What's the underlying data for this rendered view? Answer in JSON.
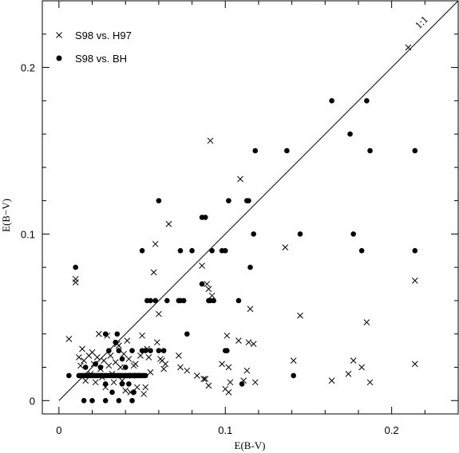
{
  "chart_data": {
    "type": "scatter",
    "xlabel": "E(B-V)",
    "ylabel": "E(B−V)",
    "xlim": [
      -0.01,
      0.24
    ],
    "ylim": [
      -0.008,
      0.24
    ],
    "xticks_major": [
      0,
      0.1,
      0.2
    ],
    "xtick_labels": [
      "0",
      "0.1",
      "0.2"
    ],
    "yticks_major": [
      0,
      0.1,
      0.2
    ],
    "ytick_labels": [
      "0",
      "0.1",
      "0.2"
    ],
    "minor_step": 0.02,
    "annotation": "1:1",
    "one_to_one_line": [
      [
        0,
        0
      ],
      [
        0.24,
        0.24
      ]
    ],
    "legend_position": "top-left",
    "series": [
      {
        "name": "S98 vs. H97",
        "marker": "x",
        "points": [
          [
            0.006,
            0.037
          ],
          [
            0.01,
            0.073
          ],
          [
            0.01,
            0.071
          ],
          [
            0.012,
            0.026
          ],
          [
            0.013,
            0.021
          ],
          [
            0.014,
            0.031
          ],
          [
            0.015,
            0.024
          ],
          [
            0.016,
            0.012
          ],
          [
            0.018,
            0.027
          ],
          [
            0.019,
            0.016
          ],
          [
            0.02,
            0.029
          ],
          [
            0.021,
            0.022
          ],
          [
            0.022,
            0.011
          ],
          [
            0.023,
            0.026
          ],
          [
            0.024,
            0.04
          ],
          [
            0.025,
            0.019
          ],
          [
            0.026,
            0.014
          ],
          [
            0.027,
            0.024
          ],
          [
            0.028,
            0.008
          ],
          [
            0.029,
            0.039
          ],
          [
            0.03,
            0.021
          ],
          [
            0.031,
            0.027
          ],
          [
            0.032,
            0.016
          ],
          [
            0.033,
            0.011
          ],
          [
            0.034,
            0.023
          ],
          [
            0.035,
            0.034
          ],
          [
            0.036,
            0.033
          ],
          [
            0.037,
            0.02
          ],
          [
            0.038,
            0.012
          ],
          [
            0.039,
            0.028
          ],
          [
            0.04,
            0.006
          ],
          [
            0.041,
            0.036
          ],
          [
            0.042,
            0.025
          ],
          [
            0.043,
            0.005
          ],
          [
            0.044,
            0.015
          ],
          [
            0.045,
            0.021
          ],
          [
            0.046,
            0.022
          ],
          [
            0.047,
            0.008
          ],
          [
            0.049,
            0.027
          ],
          [
            0.05,
            0.039
          ],
          [
            0.051,
            0.004
          ],
          [
            0.052,
            0.008
          ],
          [
            0.053,
            0.031
          ],
          [
            0.054,
            0.026
          ],
          [
            0.055,
            0.017
          ],
          [
            0.057,
            0.077
          ],
          [
            0.058,
            0.094
          ],
          [
            0.059,
            0.035
          ],
          [
            0.06,
            0.052
          ],
          [
            0.061,
            0.025
          ],
          [
            0.062,
            0.024
          ],
          [
            0.063,
            0.019
          ],
          [
            0.064,
            0.022
          ],
          [
            0.066,
            0.106
          ],
          [
            0.072,
            0.027
          ],
          [
            0.073,
            0.02
          ],
          [
            0.077,
            0.018
          ],
          [
            0.083,
            0.015
          ],
          [
            0.086,
            0.081
          ],
          [
            0.087,
            0.013
          ],
          [
            0.088,
            0.013
          ],
          [
            0.089,
            0.07
          ],
          [
            0.09,
            0.067
          ],
          [
            0.09,
            0.009
          ],
          [
            0.091,
            0.156
          ],
          [
            0.092,
            0.063
          ],
          [
            0.098,
            0.022
          ],
          [
            0.1,
            0.007
          ],
          [
            0.101,
            0.039
          ],
          [
            0.102,
            0.005
          ],
          [
            0.102,
            0.02
          ],
          [
            0.103,
            0.011
          ],
          [
            0.108,
            0.036
          ],
          [
            0.109,
            0.133
          ],
          [
            0.111,
            0.012
          ],
          [
            0.113,
            0.018
          ],
          [
            0.114,
            0.035
          ],
          [
            0.115,
            0.055
          ],
          [
            0.117,
            0.034
          ],
          [
            0.118,
            0.011
          ],
          [
            0.136,
            0.092
          ],
          [
            0.141,
            0.024
          ],
          [
            0.145,
            0.051
          ],
          [
            0.164,
            0.012
          ],
          [
            0.174,
            0.016
          ],
          [
            0.177,
            0.024
          ],
          [
            0.182,
            0.02
          ],
          [
            0.185,
            0.047
          ],
          [
            0.187,
            0.011
          ],
          [
            0.21,
            0.212
          ],
          [
            0.214,
            0.072
          ],
          [
            0.214,
            0.022
          ]
        ]
      },
      {
        "name": "S98 vs. BH",
        "marker": "o",
        "points": [
          [
            0.006,
            0.015
          ],
          [
            0.01,
            0.08
          ],
          [
            0.012,
            0.015
          ],
          [
            0.013,
            0.015
          ],
          [
            0.014,
            0.015
          ],
          [
            0.015,
            0.015
          ],
          [
            0.016,
            0.015
          ],
          [
            0.017,
            0.015
          ],
          [
            0.018,
            0.015
          ],
          [
            0.019,
            0.015
          ],
          [
            0.02,
            0.015
          ],
          [
            0.021,
            0.015
          ],
          [
            0.022,
            0.015
          ],
          [
            0.023,
            0.015
          ],
          [
            0.024,
            0.015
          ],
          [
            0.025,
            0.015
          ],
          [
            0.026,
            0.015
          ],
          [
            0.027,
            0.015
          ],
          [
            0.028,
            0.015
          ],
          [
            0.029,
            0.015
          ],
          [
            0.03,
            0.015
          ],
          [
            0.031,
            0.015
          ],
          [
            0.032,
            0.015
          ],
          [
            0.033,
            0.015
          ],
          [
            0.034,
            0.015
          ],
          [
            0.035,
            0.015
          ],
          [
            0.036,
            0.015
          ],
          [
            0.037,
            0.015
          ],
          [
            0.038,
            0.015
          ],
          [
            0.039,
            0.015
          ],
          [
            0.04,
            0.015
          ],
          [
            0.041,
            0.015
          ],
          [
            0.042,
            0.015
          ],
          [
            0.043,
            0.015
          ],
          [
            0.044,
            0.015
          ],
          [
            0.045,
            0.015
          ],
          [
            0.046,
            0.015
          ],
          [
            0.047,
            0.015
          ],
          [
            0.048,
            0.015
          ],
          [
            0.049,
            0.015
          ],
          [
            0.05,
            0.015
          ],
          [
            0.051,
            0.015
          ],
          [
            0.052,
            0.015
          ],
          [
            0.015,
            0.0
          ],
          [
            0.02,
            0.0
          ],
          [
            0.028,
            0.0
          ],
          [
            0.036,
            0.0
          ],
          [
            0.044,
            0.0
          ],
          [
            0.016,
            0.02
          ],
          [
            0.022,
            0.022
          ],
          [
            0.028,
            0.04
          ],
          [
            0.03,
            0.03
          ],
          [
            0.034,
            0.035
          ],
          [
            0.035,
            0.04
          ],
          [
            0.036,
            0.03
          ],
          [
            0.025,
            0.02
          ],
          [
            0.028,
            0.01
          ],
          [
            0.032,
            0.005
          ],
          [
            0.038,
            0.01
          ],
          [
            0.042,
            0.01
          ],
          [
            0.045,
            0.005
          ],
          [
            0.048,
            0.015
          ],
          [
            0.05,
            0.03
          ],
          [
            0.038,
            0.025
          ],
          [
            0.04,
            0.02
          ],
          [
            0.044,
            0.03
          ],
          [
            0.052,
            0.03
          ],
          [
            0.055,
            0.03
          ],
          [
            0.05,
            0.09
          ],
          [
            0.053,
            0.06
          ],
          [
            0.055,
            0.06
          ],
          [
            0.058,
            0.06
          ],
          [
            0.06,
            0.03
          ],
          [
            0.06,
            0.12
          ],
          [
            0.063,
            0.03
          ],
          [
            0.065,
            0.06
          ],
          [
            0.072,
            0.06
          ],
          [
            0.073,
            0.06
          ],
          [
            0.073,
            0.09
          ],
          [
            0.075,
            0.06
          ],
          [
            0.077,
            0.04
          ],
          [
            0.08,
            0.09
          ],
          [
            0.086,
            0.07
          ],
          [
            0.086,
            0.11
          ],
          [
            0.088,
            0.11
          ],
          [
            0.09,
            0.06
          ],
          [
            0.091,
            0.06
          ],
          [
            0.092,
            0.09
          ],
          [
            0.093,
            0.06
          ],
          [
            0.098,
            0.09
          ],
          [
            0.1,
            0.09
          ],
          [
            0.1,
            0.03
          ],
          [
            0.101,
            0.03
          ],
          [
            0.102,
            0.12
          ],
          [
            0.108,
            0.06
          ],
          [
            0.11,
            0.01
          ],
          [
            0.113,
            0.12
          ],
          [
            0.114,
            0.12
          ],
          [
            0.115,
            0.08
          ],
          [
            0.117,
            0.1
          ],
          [
            0.118,
            0.15
          ],
          [
            0.137,
            0.15
          ],
          [
            0.141,
            0.015
          ],
          [
            0.145,
            0.1
          ],
          [
            0.164,
            0.18
          ],
          [
            0.175,
            0.16
          ],
          [
            0.177,
            0.1
          ],
          [
            0.182,
            0.09
          ],
          [
            0.185,
            0.18
          ],
          [
            0.187,
            0.15
          ],
          [
            0.214,
            0.15
          ],
          [
            0.214,
            0.09
          ]
        ]
      }
    ]
  }
}
